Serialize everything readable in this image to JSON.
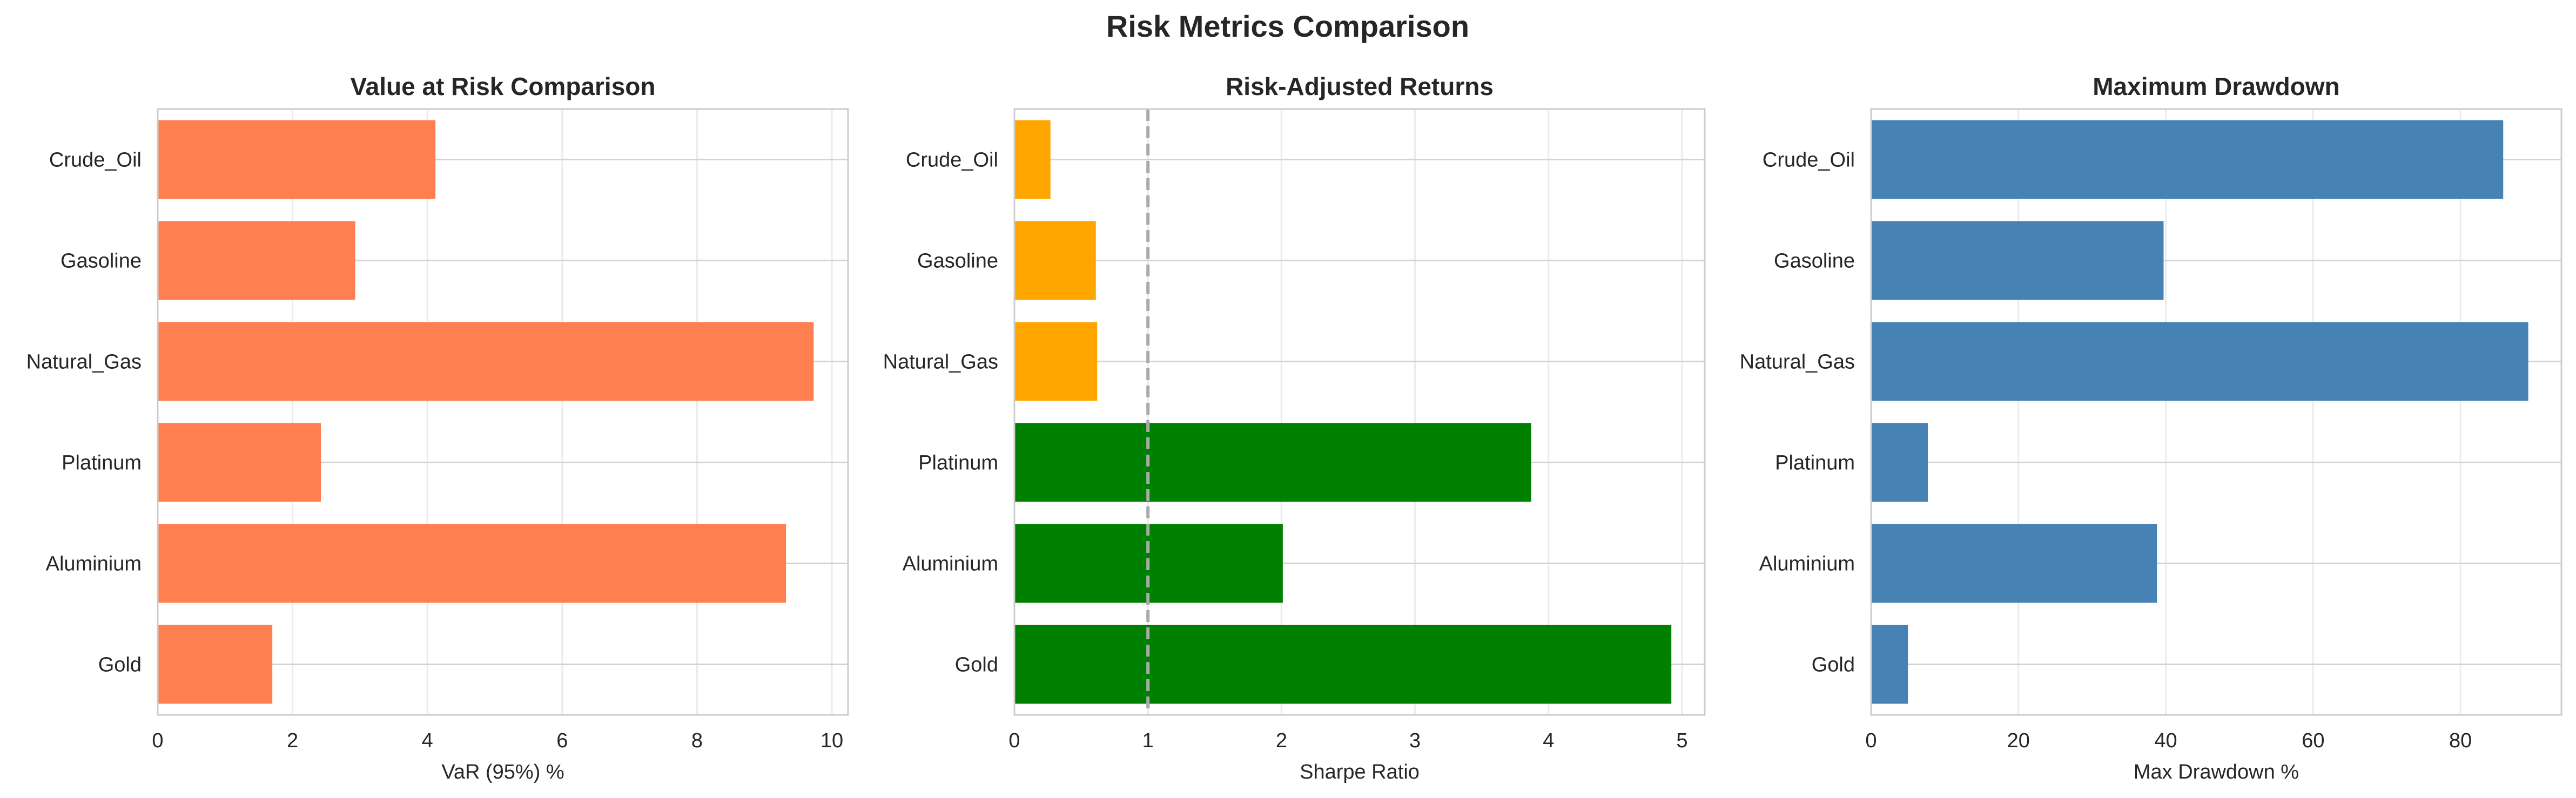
{
  "suptitle": "Risk Metrics Comparison",
  "chart_data": [
    {
      "type": "bar",
      "orientation": "horizontal",
      "title": "Value at Risk Comparison",
      "xlabel": "VaR (95%) %",
      "ylabel": "",
      "categories": [
        "Crude_Oil",
        "Gasoline",
        "Natural_Gas",
        "Platinum",
        "Aluminium",
        "Gold"
      ],
      "values": [
        4.12,
        2.93,
        9.73,
        2.42,
        9.32,
        1.7
      ],
      "bar_colors": [
        "#ff7f50",
        "#ff7f50",
        "#ff7f50",
        "#ff7f50",
        "#ff7f50",
        "#ff7f50"
      ],
      "xlim": [
        0,
        10.24
      ],
      "xticks": [
        0,
        2,
        4,
        6,
        8,
        10
      ],
      "xtick_labels": [
        "0",
        "2",
        "4",
        "6",
        "8",
        "10"
      ],
      "grid": true
    },
    {
      "type": "bar",
      "orientation": "horizontal",
      "title": "Risk-Adjusted Returns",
      "xlabel": "Sharpe Ratio",
      "ylabel": "",
      "categories": [
        "Crude_Oil",
        "Gasoline",
        "Natural_Gas",
        "Platinum",
        "Aluminium",
        "Gold"
      ],
      "values": [
        0.27,
        0.61,
        0.62,
        3.87,
        2.01,
        4.92
      ],
      "bar_colors": [
        "#ffa500",
        "#ffa500",
        "#ffa500",
        "#008000",
        "#008000",
        "#008000"
      ],
      "xlim": [
        0,
        5.17
      ],
      "xticks": [
        0,
        1,
        2,
        3,
        4,
        5
      ],
      "xtick_labels": [
        "0",
        "1",
        "2",
        "3",
        "4",
        "5"
      ],
      "reference_line": {
        "x": 1,
        "style": "dashed",
        "color": "#aaaaaa"
      },
      "grid": true
    },
    {
      "type": "bar",
      "orientation": "horizontal",
      "title": "Maximum Drawdown",
      "xlabel": "Max Drawdown %",
      "ylabel": "",
      "categories": [
        "Crude_Oil",
        "Gasoline",
        "Natural_Gas",
        "Platinum",
        "Aluminium",
        "Gold"
      ],
      "values": [
        85.8,
        39.7,
        89.2,
        7.7,
        38.8,
        5.0
      ],
      "bar_colors": [
        "#4682b4",
        "#4682b4",
        "#4682b4",
        "#4682b4",
        "#4682b4",
        "#4682b4"
      ],
      "xlim": [
        0,
        93.7
      ],
      "xticks": [
        0,
        20,
        40,
        60,
        80
      ],
      "xtick_labels": [
        "0",
        "20",
        "40",
        "60",
        "80"
      ],
      "grid": true
    }
  ]
}
